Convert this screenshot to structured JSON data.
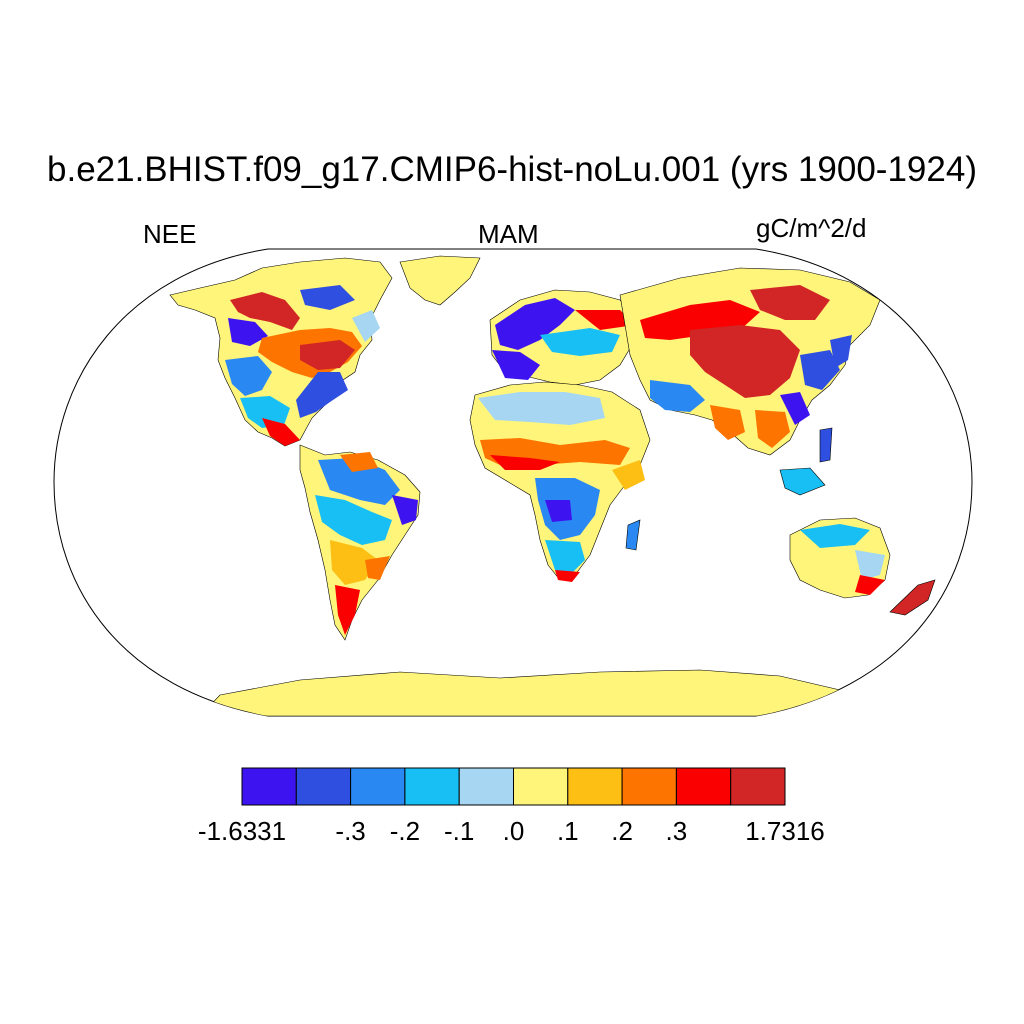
{
  "title": "b.e21.BHIST.f09_g17.CMIP6-hist-noLu.001 (yrs 1900-1924)",
  "left_label": "NEE",
  "center_label": "MAM",
  "right_label": "gC/m^2/d",
  "colorbar": {
    "colors": [
      "#3d14f0",
      "#2f4fe0",
      "#2a88f2",
      "#17bff5",
      "#a6d6f2",
      "#fef57a",
      "#fdbf14",
      "#fd7400",
      "#fb0000",
      "#d22626"
    ],
    "tick_labels": [
      "-1.6331",
      "-.3",
      "-.2",
      "-.1",
      ".0",
      ".1",
      ".2",
      ".3",
      "1.7316"
    ]
  },
  "map": {
    "projection": "robinson",
    "ocean_color": "#ffffff",
    "land_default_color": "#fef57a"
  }
}
